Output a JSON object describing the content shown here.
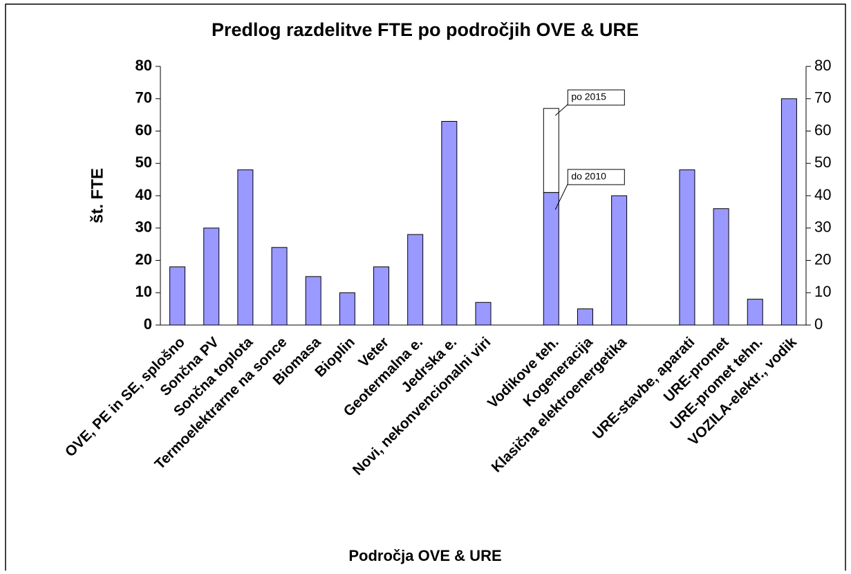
{
  "chart_data": {
    "type": "stacked_bar",
    "title": "Predlog razdelitve FTE po področjih OVE & URE",
    "y_label": "št. FTE",
    "x_label": "Področja OVE & URE",
    "categories": [
      "OVE, PE in SE, splošno",
      "Sončna PV",
      "Sončna toplota",
      "Termoelektrarne na sonce",
      "Biomasa",
      "Bioplin",
      "Veter",
      "Geotermalna e.",
      "Jedrska e.",
      "Novi, nekonvencionalni viri",
      null,
      "Vodikove teh.",
      "Kogeneracija",
      "Klasična elektroenergetika",
      null,
      "URE-stavbe, aparati",
      "URE-promet",
      "URE-promet tehn.",
      "VOZILA-elektr., vodik"
    ],
    "series": [
      {
        "name": "do 2010",
        "color": "#9999ff",
        "values": [
          18,
          30,
          48,
          24,
          15,
          10,
          18,
          28,
          63,
          7,
          null,
          41,
          5,
          40,
          null,
          48,
          36,
          8,
          70
        ]
      },
      {
        "name": "po 2015",
        "color": "#ffffff",
        "values": [
          null,
          null,
          null,
          null,
          null,
          null,
          null,
          null,
          null,
          null,
          null,
          26,
          null,
          null,
          null,
          null,
          null,
          null,
          null
        ]
      }
    ],
    "ylim": [
      0,
      80
    ],
    "yticks": [
      0,
      10,
      20,
      30,
      40,
      50,
      60,
      70,
      80
    ],
    "y2lim": [
      0,
      80
    ],
    "y2ticks": [
      0,
      10,
      20,
      30,
      40,
      50,
      60,
      70,
      80
    ]
  }
}
